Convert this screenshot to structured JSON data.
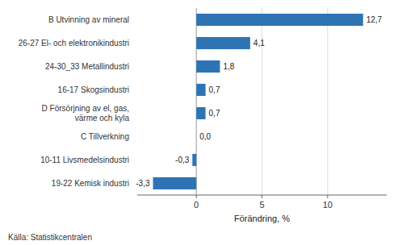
{
  "chart_data": {
    "type": "bar",
    "orientation": "horizontal",
    "categories": [
      "19-22 Kemisk industri",
      "10-11 Livsmedelsindustri",
      "C Tillverkning",
      "D Försörjning av el, gas,\nvärme och kyla",
      "16-17 Skogsindustri",
      "24-30_33 Metallindustri",
      "26-27 El- och elektronikindustri",
      "B Utvinning av mineral"
    ],
    "values": [
      -3.3,
      -0.3,
      0.0,
      0.7,
      0.7,
      1.8,
      4.1,
      12.7
    ],
    "value_labels": [
      "-3,3",
      "-0,3",
      "0,0",
      "0,7",
      "0,7",
      "1,8",
      "4,1",
      "12,7"
    ],
    "color": "#2E74B5",
    "xlabel": "Förändring, %",
    "xlim": [
      -4.5,
      14.5
    ],
    "xticks": [
      0,
      5,
      10
    ],
    "grid": true,
    "annotations": [
      "Källa: Statistikcentralen"
    ]
  }
}
